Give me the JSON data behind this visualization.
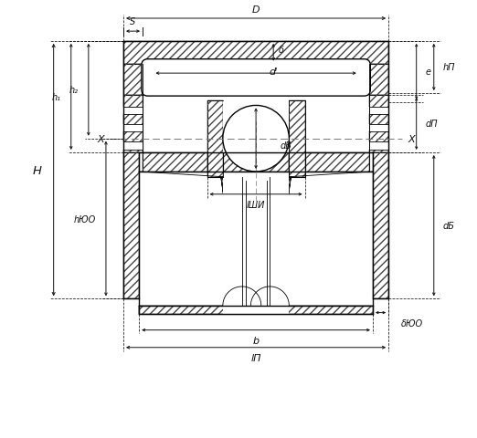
{
  "bg": "#ffffff",
  "lc": "#000000",
  "dc": "#000000",
  "figsize": [
    5.22,
    4.81
  ],
  "dpi": 100,
  "labels": {
    "D": "D",
    "S": "S",
    "delta": "δ",
    "e": "e",
    "hP": "hП",
    "h2": "h₂",
    "h1": "h₁",
    "H": "H",
    "hYO": "hЮО",
    "di": "dᴵ",
    "X": "X",
    "dB": "dВ",
    "dP": "dП",
    "dB2": "dБ",
    "lSH": "lШИ",
    "b": "b",
    "lP": "lП",
    "deltaYO": "δЮО"
  }
}
